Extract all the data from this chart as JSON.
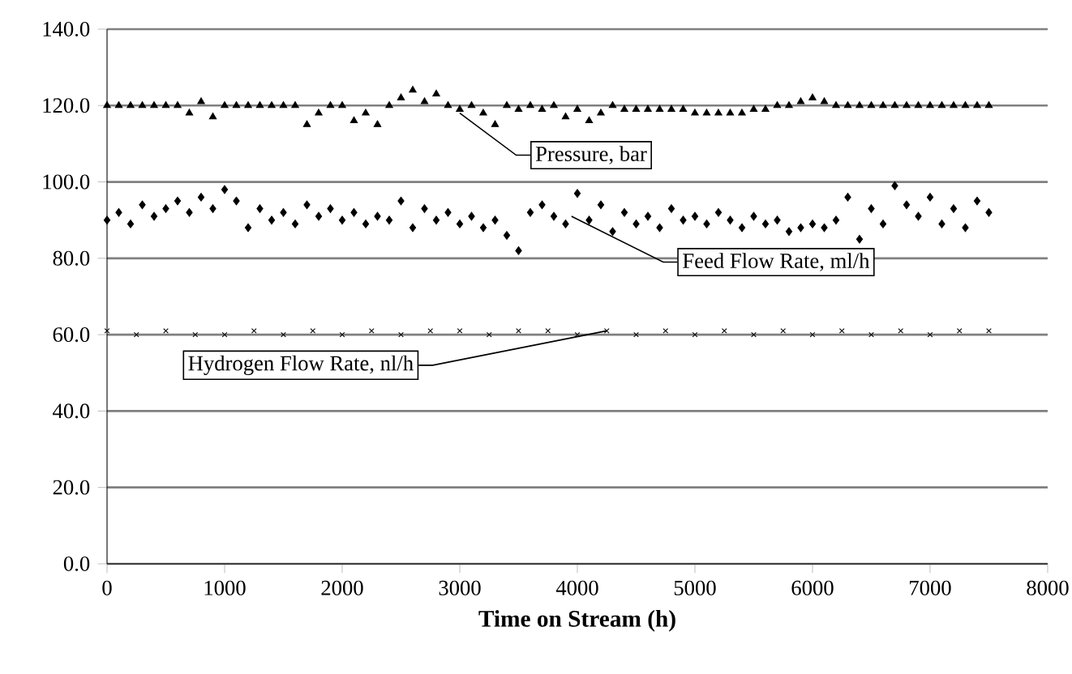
{
  "chart_data": {
    "type": "scatter",
    "xlabel": "Time on Stream (h)",
    "xlim": [
      0,
      8000
    ],
    "xticks": [
      0,
      1000,
      2000,
      3000,
      4000,
      5000,
      6000,
      7000,
      8000
    ],
    "ylim": [
      0,
      140
    ],
    "yticks": [
      {
        "value": 0,
        "label": "0.0"
      },
      {
        "value": 20,
        "label": "20.0"
      },
      {
        "value": 40,
        "label": "40.0"
      },
      {
        "value": 60,
        "label": "60.0"
      },
      {
        "value": 80,
        "label": "80.0"
      },
      {
        "value": 100,
        "label": "100.0"
      },
      {
        "value": 120,
        "label": "120.0"
      },
      {
        "value": 140,
        "label": "140.0"
      }
    ],
    "grid": "y",
    "series": [
      {
        "color": "#000000",
        "marker": "triangle",
        "x": [
          0,
          100,
          200,
          300,
          400,
          500,
          600,
          700,
          800,
          900,
          1000,
          1100,
          1200,
          1300,
          1400,
          1500,
          1600,
          1700,
          1800,
          1900,
          2000,
          2100,
          2200,
          2300,
          2400,
          2500,
          2600,
          2700,
          2800,
          2900,
          3000,
          3100,
          3200,
          3300,
          3400,
          3500,
          3600,
          3700,
          3800,
          3900,
          4000,
          4100,
          4200,
          4300,
          4400,
          4500,
          4600,
          4700,
          4800,
          4900,
          5000,
          5100,
          5200,
          5300,
          5400,
          5500,
          5600,
          5700,
          5800,
          5900,
          6000,
          6100,
          6200,
          6300,
          6400,
          6500,
          6600,
          6700,
          6800,
          6900,
          7000,
          7100,
          7200,
          7300,
          7400,
          7500
        ],
        "values": [
          120,
          120,
          120,
          120,
          120,
          120,
          120,
          118,
          121,
          117,
          120,
          120,
          120,
          120,
          120,
          120,
          120,
          115,
          118,
          120,
          120,
          116,
          118,
          115,
          120,
          122,
          124,
          121,
          123,
          120,
          119,
          120,
          118,
          115,
          120,
          119,
          120,
          119,
          120,
          117,
          119,
          116,
          118,
          120,
          119,
          119,
          119,
          119,
          119,
          119,
          118,
          118,
          118,
          118,
          118,
          119,
          119,
          120,
          120,
          121,
          122,
          121,
          120,
          120,
          120,
          120,
          120,
          120,
          120,
          120,
          120,
          120,
          120,
          120,
          120,
          120
        ]
      },
      {
        "color": "#000000",
        "marker": "diamond",
        "x": [
          0,
          100,
          200,
          300,
          400,
          500,
          600,
          700,
          800,
          900,
          1000,
          1100,
          1200,
          1300,
          1400,
          1500,
          1600,
          1700,
          1800,
          1900,
          2000,
          2100,
          2200,
          2300,
          2400,
          2500,
          2600,
          2700,
          2800,
          2900,
          3000,
          3100,
          3200,
          3300,
          3400,
          3500,
          3600,
          3700,
          3800,
          3900,
          4000,
          4100,
          4200,
          4300,
          4400,
          4500,
          4600,
          4700,
          4800,
          4900,
          5000,
          5100,
          5200,
          5300,
          5400,
          5500,
          5600,
          5700,
          5800,
          5900,
          6000,
          6100,
          6200,
          6300,
          6400,
          6500,
          6600,
          6700,
          6800,
          6900,
          7000,
          7100,
          7200,
          7300,
          7400,
          7500
        ],
        "values": [
          90,
          92,
          89,
          94,
          91,
          93,
          95,
          92,
          96,
          93,
          98,
          95,
          88,
          93,
          90,
          92,
          89,
          94,
          91,
          93,
          90,
          92,
          89,
          91,
          90,
          95,
          88,
          93,
          90,
          92,
          89,
          91,
          88,
          90,
          86,
          82,
          92,
          94,
          91,
          89,
          97,
          90,
          94,
          87,
          92,
          89,
          91,
          88,
          93,
          90,
          91,
          89,
          92,
          90,
          88,
          91,
          89,
          90,
          87,
          88,
          89,
          88,
          90,
          96,
          85,
          93,
          89,
          99,
          94,
          91,
          96,
          89,
          93,
          88,
          95,
          92
        ]
      },
      {
        "color": "#000000",
        "marker": "cross",
        "x": [
          0,
          250,
          500,
          750,
          1000,
          1250,
          1500,
          1750,
          2000,
          2250,
          2500,
          2750,
          3000,
          3250,
          3500,
          3750,
          4000,
          4250,
          4500,
          4750,
          5000,
          5250,
          5500,
          5750,
          6000,
          6250,
          6500,
          6750,
          7000,
          7250,
          7500
        ],
        "values": [
          61,
          60,
          61,
          60,
          60,
          61,
          60,
          61,
          60,
          61,
          60,
          61,
          61,
          60,
          61,
          61,
          60,
          61,
          60,
          61,
          60,
          61,
          60,
          61,
          60,
          61,
          60,
          61,
          60,
          61,
          61
        ]
      }
    ],
    "annotations": [
      {
        "text": "Pressure, bar",
        "x": 3000,
        "y": 118
      },
      {
        "text": "Feed Flow Rate, ml/h",
        "x": 3950,
        "y": 91
      },
      {
        "text": "Hydrogen Flow Rate, nl/h",
        "x": 4250,
        "y": 61
      }
    ]
  }
}
